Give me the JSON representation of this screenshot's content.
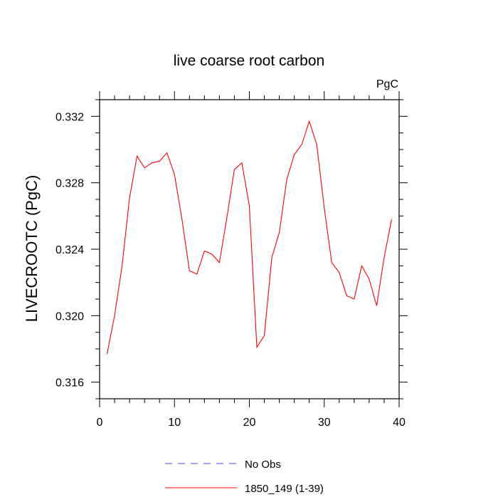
{
  "chart_data": {
    "type": "line",
    "title": "live coarse root carbon",
    "units_label": "PgC",
    "xlabel": "",
    "ylabel": "LIVECROOTC  (PgC)",
    "xlim": [
      0,
      40
    ],
    "ylim": [
      0.315,
      0.333
    ],
    "xticks": [
      0,
      10,
      20,
      30,
      40
    ],
    "xtick_labels": [
      "0",
      "10",
      "20",
      "30",
      "40"
    ],
    "yticks": [
      0.316,
      0.32,
      0.324,
      0.328,
      0.332
    ],
    "ytick_labels": [
      "0.316",
      "0.320",
      "0.324",
      "0.328",
      "0.332"
    ],
    "grid": false,
    "legend_position": "bottom",
    "series": [
      {
        "name": "No Obs",
        "color": "#4a4aff",
        "dash": "dashed",
        "x": [],
        "y": []
      },
      {
        "name": "1850_149 (1-39)",
        "color": "#ff0000",
        "dash": "solid",
        "x": [
          1,
          2,
          3,
          4,
          5,
          6,
          7,
          8,
          9,
          10,
          11,
          12,
          13,
          14,
          15,
          16,
          17,
          18,
          19,
          20,
          21,
          22,
          23,
          24,
          25,
          26,
          27,
          28,
          29,
          30,
          31,
          32,
          33,
          34,
          35,
          36,
          37,
          38,
          39
        ],
        "y": [
          0.3177,
          0.32,
          0.323,
          0.3271,
          0.3296,
          0.3289,
          0.3292,
          0.3293,
          0.3298,
          0.3285,
          0.3258,
          0.3227,
          0.3225,
          0.3239,
          0.3237,
          0.3232,
          0.3259,
          0.3288,
          0.3292,
          0.3266,
          0.3181,
          0.3188,
          0.3235,
          0.325,
          0.3282,
          0.3297,
          0.3303,
          0.3317,
          0.3303,
          0.3265,
          0.3232,
          0.3226,
          0.3212,
          0.321,
          0.323,
          0.3222,
          0.3206,
          0.3235,
          0.3258
        ]
      }
    ]
  }
}
